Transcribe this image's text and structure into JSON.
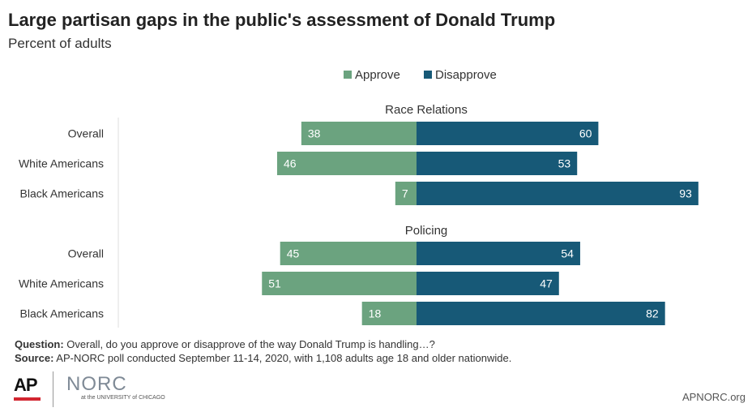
{
  "title": "Large partisan gaps in the public's assessment of Donald Trump",
  "subtitle": "Percent of adults",
  "colors": {
    "approve": "#6ba37f",
    "disapprove": "#175977"
  },
  "chart_data": {
    "type": "bar",
    "orientation": "horizontal-diverging",
    "title": "Large partisan gaps in the public's assessment of Donald Trump",
    "subtitle": "Percent of adults",
    "legend": {
      "placement": "top-center",
      "entries": [
        "Approve",
        "Disapprove"
      ]
    },
    "series": [
      {
        "name": "Approve",
        "color": "#6ba37f"
      },
      {
        "name": "Disapprove",
        "color": "#175977"
      }
    ],
    "groups": [
      {
        "label": "Race Relations",
        "categories": [
          "Overall",
          "White Americans",
          "Black Americans"
        ],
        "approve": [
          38,
          46,
          7
        ],
        "disapprove": [
          60,
          53,
          93
        ]
      },
      {
        "label": "Policing",
        "categories": [
          "Overall",
          "White Americans",
          "Black Americans"
        ],
        "approve": [
          45,
          51,
          18
        ],
        "disapprove": [
          54,
          47,
          82
        ]
      }
    ],
    "xlim": [
      -100,
      100
    ],
    "grid": false
  },
  "footer": {
    "question_label": "Question:",
    "question_text": " Overall, do you approve or disapprove of the way Donald Trump is handling…?",
    "source_label": "Source:",
    "source_text": " AP-NORC poll conducted September 11-14, 2020, with 1,108 adults age 18 and older nationwide."
  },
  "logos": {
    "ap": "AP",
    "norc": "NORC",
    "norc_sub": "at the UNIVERSITY of CHICAGO"
  },
  "site": "APNORC.org"
}
